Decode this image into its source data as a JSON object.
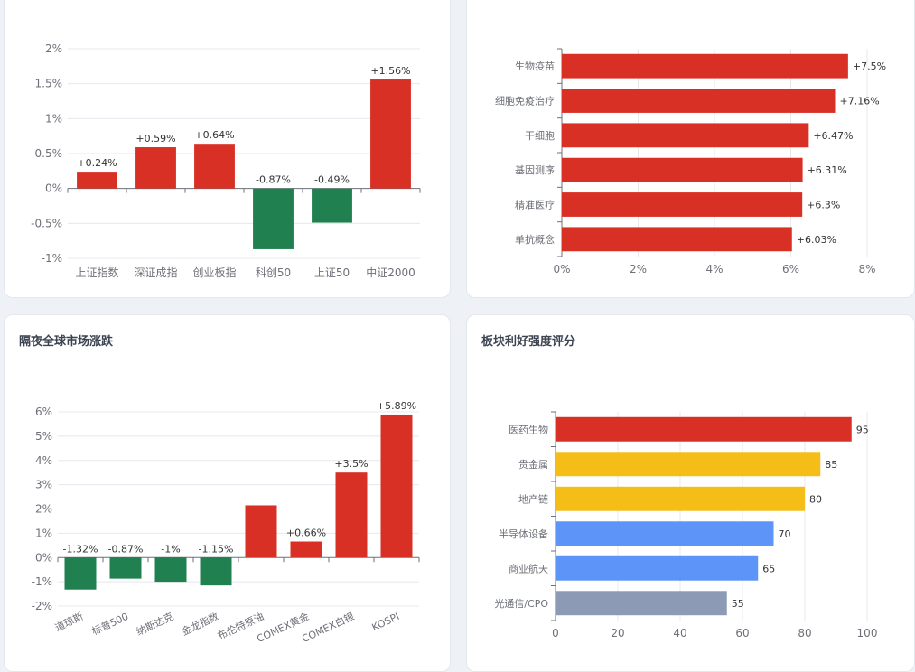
{
  "colors": {
    "up": "#d93026",
    "down": "#21804f",
    "gold": "#f5bd17",
    "blue": "#5c94f7",
    "grey": "#8c9ab5",
    "axis": "#6e7079",
    "grid": "#e6e8ee",
    "label": "#333333"
  },
  "chart_data": [
    {
      "id": "indices",
      "type": "bar",
      "title": "",
      "categories": [
        "上证指数",
        "深证成指",
        "创业板指",
        "科创50",
        "上证50",
        "中证2000"
      ],
      "values": [
        0.24,
        0.59,
        0.64,
        -0.87,
        -0.49,
        1.56
      ],
      "value_labels": [
        "+0.24%",
        "+0.59%",
        "+0.64%",
        "-0.87%",
        "-0.49%",
        "+1.56%"
      ],
      "yticks": [
        "2%",
        "1.5%",
        "1%",
        "0.5%",
        "0%",
        "-0.5%",
        "-1%"
      ],
      "ylim": [
        -1,
        2
      ],
      "grid": true
    },
    {
      "id": "sectors",
      "type": "bar",
      "orientation": "horizontal",
      "title": "",
      "categories": [
        "生物疫苗",
        "细胞免疫治疗",
        "干细胞",
        "基因测序",
        "精准医疗",
        "单抗概念"
      ],
      "values": [
        7.5,
        7.16,
        6.47,
        6.31,
        6.3,
        6.03
      ],
      "value_labels": [
        "+7.5%",
        "+7.16%",
        "+6.47%",
        "+6.31%",
        "+6.3%",
        "+6.03%"
      ],
      "xticks": [
        "0%",
        "2%",
        "4%",
        "6%",
        "8%"
      ],
      "xlim": [
        0,
        8
      ],
      "grid": true
    },
    {
      "id": "global",
      "type": "bar",
      "title": "隔夜全球市场涨跌",
      "categories": [
        "道琼斯",
        "标普500",
        "纳斯达克",
        "金龙指数",
        "布伦特原油",
        "COMEX黄金",
        "COMEX白银",
        "KOSPI"
      ],
      "values": [
        -1.32,
        -0.87,
        -1,
        -1.15,
        2.15,
        0.66,
        3.5,
        5.89
      ],
      "value_labels": [
        "-1.32%",
        "-0.87%",
        "-1%",
        "-1.15%",
        "",
        "+0.66%",
        "+3.5%",
        "+5.89%"
      ],
      "yticks": [
        "6%",
        "5%",
        "4%",
        "3%",
        "2%",
        "1%",
        "0%",
        "-1%",
        "-2%"
      ],
      "ylim": [
        -2,
        6
      ],
      "grid": true
    },
    {
      "id": "scores",
      "type": "bar",
      "orientation": "horizontal",
      "title": "板块利好强度评分",
      "categories": [
        "医药生物",
        "贵金属",
        "地产链",
        "半导体设备",
        "商业航天",
        "光通信/CPO"
      ],
      "values": [
        95,
        85,
        80,
        70,
        65,
        55
      ],
      "value_labels": [
        "95",
        "85",
        "80",
        "70",
        "65",
        "55"
      ],
      "bar_colors": [
        "up",
        "gold",
        "gold",
        "blue",
        "blue",
        "grey"
      ],
      "xticks": [
        "0",
        "20",
        "40",
        "60",
        "80",
        "100"
      ],
      "xlim": [
        0,
        100
      ],
      "grid": true
    }
  ]
}
